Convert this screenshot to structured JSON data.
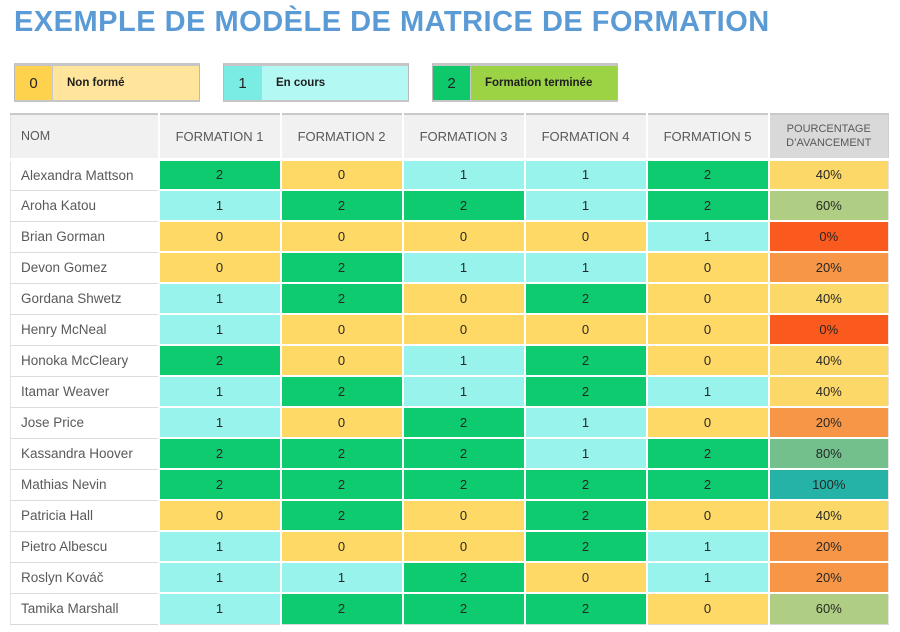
{
  "title": "EXEMPLE DE MODÈLE DE MATRICE DE FORMATION",
  "legend": [
    {
      "value": "0",
      "label": "Non formé",
      "value_bg": "#FFD24E",
      "label_bg": "#FFE59B"
    },
    {
      "value": "1",
      "label": "En cours",
      "value_bg": "#7BECE4",
      "label_bg": "#B4F8F3"
    },
    {
      "value": "2",
      "label": "Formation terminée",
      "value_bg": "#0DC96B",
      "label_bg": "#9BD345"
    }
  ],
  "table": {
    "headers": [
      "NOM",
      "FORMATION 1",
      "FORMATION 2",
      "FORMATION 3",
      "FORMATION 4",
      "FORMATION 5",
      "POURCENTAGE D’AVANCEMENT"
    ],
    "rows": [
      {
        "name": "Alexandra Mattson",
        "values": [
          2,
          0,
          1,
          1,
          2
        ],
        "progress": "40%"
      },
      {
        "name": "Aroha Katou",
        "values": [
          1,
          2,
          2,
          1,
          2
        ],
        "progress": "60%"
      },
      {
        "name": "Brian Gorman",
        "values": [
          0,
          0,
          0,
          0,
          1
        ],
        "progress": "0%"
      },
      {
        "name": "Devon Gomez",
        "values": [
          0,
          2,
          1,
          1,
          0
        ],
        "progress": "20%"
      },
      {
        "name": "Gordana Shwetz",
        "values": [
          1,
          2,
          0,
          2,
          0
        ],
        "progress": "40%"
      },
      {
        "name": "Henry McNeal",
        "values": [
          1,
          0,
          0,
          0,
          0
        ],
        "progress": "0%"
      },
      {
        "name": "Honoka McCleary",
        "values": [
          2,
          0,
          1,
          2,
          0
        ],
        "progress": "40%"
      },
      {
        "name": "Itamar Weaver",
        "values": [
          1,
          2,
          1,
          2,
          1
        ],
        "progress": "40%"
      },
      {
        "name": "Jose Price",
        "values": [
          1,
          0,
          2,
          1,
          0
        ],
        "progress": "20%"
      },
      {
        "name": "Kassandra Hoover",
        "values": [
          2,
          2,
          2,
          1,
          2
        ],
        "progress": "80%"
      },
      {
        "name": "Mathias Nevin",
        "values": [
          2,
          2,
          2,
          2,
          2
        ],
        "progress": "100%"
      },
      {
        "name": "Patricia Hall",
        "values": [
          0,
          2,
          0,
          2,
          0
        ],
        "progress": "40%"
      },
      {
        "name": "Pietro Albescu",
        "values": [
          1,
          0,
          0,
          2,
          1
        ],
        "progress": "20%"
      },
      {
        "name": "Roslyn Kováč",
        "values": [
          1,
          1,
          2,
          0,
          1
        ],
        "progress": "20%"
      },
      {
        "name": "Tamika Marshall",
        "values": [
          1,
          2,
          2,
          2,
          0
        ],
        "progress": "60%"
      }
    ]
  },
  "colors": {
    "title": "#5B9BD5",
    "value_bg": {
      "0": "#FFD966",
      "1": "#97F3EB",
      "2": "#0DCB6E"
    },
    "progress_bg": {
      "0%": "#FA5A1D",
      "20%": "#F79646",
      "40%": "#FBD867",
      "60%": "#AFCE84",
      "80%": "#74C08D",
      "100%": "#26B3A7"
    }
  }
}
